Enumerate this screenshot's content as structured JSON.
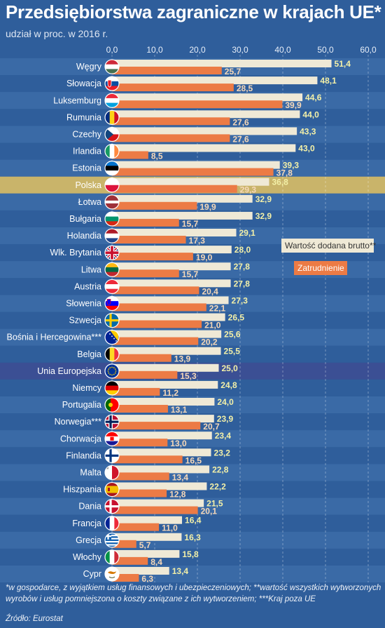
{
  "title": "Przedsiębiorstwa zagraniczne w krajach UE*",
  "subtitle": "udział w proc. w 2016 r.",
  "footnote": "*w gospodarce, z wyjątkiem usług finansowych i ubezpieczeniowych;  **wartość wszystkich wytworzonych wyrobów i usług pomniejszona o koszty związane z ich wytworzeniem;  ***Kraj poza UE",
  "source": "Źródło: Eurostat",
  "colors": {
    "background": "#2f5e9b",
    "row_alt": "#3a6aa6",
    "highlight_polska": "#c9b46a",
    "highlight_eu": "#3b4f94",
    "bar_value_added": "#efe9d6",
    "bar_employment": "#ec7b45",
    "label_value_added": "#f3f0a8",
    "label_employment": "#f6d8b8"
  },
  "chart_data": {
    "type": "bar",
    "orientation": "horizontal",
    "xlim": [
      0,
      60
    ],
    "tick_labels": [
      "0,0",
      "10,0",
      "20,0",
      "30,0",
      "40,0",
      "50,0",
      "60,0"
    ],
    "highlighted": [
      "Polska",
      "Unia Europejska"
    ],
    "categories": [
      "Węgry",
      "Słowacja",
      "Luksemburg",
      "Rumunia",
      "Czechy",
      "Irlandia",
      "Estonia",
      "Polska",
      "Łotwa",
      "Bułgaria",
      "Holandia",
      "Wlk. Brytania",
      "Litwa",
      "Austria",
      "Słowenia",
      "Szwecja",
      "Bośnia i Hercegowina***",
      "Belgia",
      "Unia Europejska",
      "Niemcy",
      "Portugalia",
      "Norwegia***",
      "Chorwacja",
      "Finlandia",
      "Malta",
      "Hiszpania",
      "Dania",
      "Francja",
      "Grecja",
      "Włochy",
      "Cypr"
    ],
    "flag_icons": [
      "flag-hungary-icon",
      "flag-slovakia-icon",
      "flag-luxembourg-icon",
      "flag-romania-icon",
      "flag-czechia-icon",
      "flag-ireland-icon",
      "flag-estonia-icon",
      "flag-poland-icon",
      "flag-latvia-icon",
      "flag-bulgaria-icon",
      "flag-netherlands-icon",
      "flag-uk-icon",
      "flag-lithuania-icon",
      "flag-austria-icon",
      "flag-slovenia-icon",
      "flag-sweden-icon",
      "flag-bosnia-icon",
      "flag-belgium-icon",
      "flag-eu-icon",
      "flag-germany-icon",
      "flag-portugal-icon",
      "flag-norway-icon",
      "flag-croatia-icon",
      "flag-finland-icon",
      "flag-malta-icon",
      "flag-spain-icon",
      "flag-denmark-icon",
      "flag-france-icon",
      "flag-greece-icon",
      "flag-italy-icon",
      "flag-cyprus-icon"
    ],
    "series": [
      {
        "name": "Wartość dodana brutto**",
        "values": [
          51.4,
          48.1,
          44.6,
          44.0,
          43.3,
          43.0,
          39.3,
          36.8,
          32.9,
          32.9,
          29.1,
          28.0,
          27.8,
          27.8,
          27.3,
          26.5,
          25.6,
          25.5,
          25.0,
          24.8,
          24.0,
          23.9,
          23.4,
          23.2,
          22.8,
          22.2,
          21.5,
          16.4,
          16.3,
          15.8,
          13.4
        ],
        "labels": [
          "51,4",
          "48,1",
          "44,6",
          "44,0",
          "43,3",
          "43,0",
          "39,3",
          "36,8",
          "32,9",
          "32,9",
          "29,1",
          "28,0",
          "27,8",
          "27,8",
          "27,3",
          "26,5",
          "25,6",
          "25,5",
          "25,0",
          "24,8",
          "24,0",
          "23,9",
          "23,4",
          "23,2",
          "22,8",
          "22,2",
          "21,5",
          "16,4",
          "16,3",
          "15,8",
          "13,4"
        ]
      },
      {
        "name": "Zatrudnienie",
        "values": [
          25.7,
          28.5,
          39.9,
          27.6,
          27.6,
          8.5,
          37.8,
          29.3,
          19.9,
          15.7,
          17.3,
          19.0,
          15.7,
          20.4,
          22.1,
          21.0,
          20.2,
          13.9,
          15.3,
          11.2,
          13.1,
          20.7,
          13.0,
          16.5,
          13.4,
          12.8,
          20.1,
          11.0,
          5.7,
          8.4,
          6.3
        ],
        "labels": [
          "25,7",
          "28,5",
          "39,9",
          "27,6",
          "27,6",
          "8,5",
          "37,8",
          "29,3",
          "19,9",
          "15,7",
          "17,3",
          "19,0",
          "15,7",
          "20,4",
          "22,1",
          "21,0",
          "20,2",
          "13,9",
          "15,3",
          "11,2",
          "13,1",
          "20,7",
          "13,0",
          "16,5",
          "13,4",
          "12,8",
          "20,1",
          "11,0",
          "5,7",
          "8,4",
          "6,3"
        ]
      }
    ]
  }
}
